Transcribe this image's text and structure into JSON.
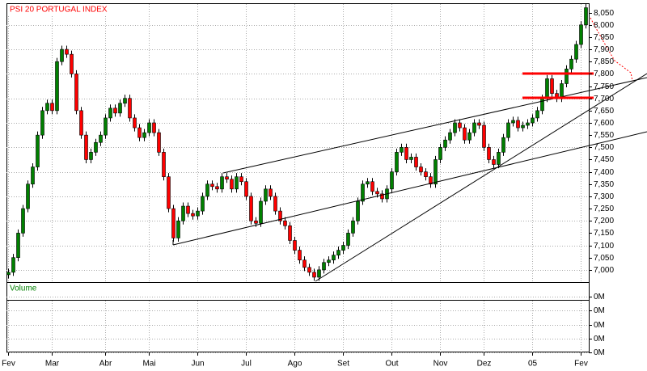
{
  "chart_data": {
    "type": "candlestick",
    "title": "PSI 20 PORTUGAL INDEX",
    "up_color": "#008000",
    "down_color": "#ff0000",
    "grid": true,
    "categories": [
      "Fev",
      null,
      null,
      null,
      null,
      null,
      null,
      null,
      null,
      "Mar",
      null,
      null,
      null,
      null,
      null,
      null,
      null,
      null,
      null,
      null,
      "Abr",
      null,
      null,
      null,
      null,
      null,
      null,
      null,
      null,
      "Mai",
      null,
      null,
      null,
      null,
      null,
      null,
      null,
      null,
      null,
      "Jun",
      null,
      null,
      null,
      null,
      null,
      null,
      null,
      null,
      null,
      "Jul",
      null,
      null,
      null,
      null,
      null,
      null,
      null,
      null,
      null,
      "Ago",
      null,
      null,
      null,
      null,
      null,
      null,
      null,
      null,
      null,
      "Set",
      null,
      null,
      null,
      null,
      null,
      null,
      null,
      null,
      null,
      "Out",
      null,
      null,
      null,
      null,
      null,
      null,
      null,
      null,
      null,
      "Nov",
      null,
      null,
      null,
      null,
      null,
      null,
      null,
      null,
      "Dez",
      null,
      null,
      null,
      null,
      null,
      null,
      null,
      null,
      null,
      "05",
      null,
      null,
      null,
      null,
      null,
      null,
      null,
      null,
      null,
      "Fev",
      null
    ],
    "open": [
      6980,
      6990,
      7050,
      7150,
      7250,
      7350,
      7420,
      7550,
      7650,
      7680,
      7650,
      7850,
      7900,
      7880,
      7800,
      7650,
      7550,
      7450,
      7480,
      7520,
      7550,
      7620,
      7660,
      7640,
      7680,
      7700,
      7620,
      7580,
      7540,
      7560,
      7600,
      7560,
      7480,
      7380,
      7250,
      7130,
      7200,
      7260,
      7230,
      7220,
      7240,
      7300,
      7350,
      7340,
      7330,
      7380,
      7370,
      7330,
      7380,
      7360,
      7300,
      7200,
      7190,
      7280,
      7330,
      7300,
      7240,
      7200,
      7180,
      7120,
      7080,
      7040,
      7010,
      6990,
      6970,
      7000,
      7030,
      7040,
      7060,
      7080,
      7100,
      7150,
      7200,
      7280,
      7350,
      7360,
      7320,
      7310,
      7290,
      7330,
      7400,
      7480,
      7500,
      7450,
      7460,
      7420,
      7400,
      7380,
      7350,
      7450,
      7500,
      7530,
      7560,
      7600,
      7580,
      7530,
      7560,
      7600,
      7590,
      7500,
      7450,
      7430,
      7480,
      7540,
      7600,
      7610,
      7580,
      7590,
      7600,
      7620,
      7650,
      7700,
      7780,
      7720,
      7700,
      7760,
      7820,
      7860,
      7920,
      8000
    ],
    "high": [
      7005,
      7065,
      7165,
      7265,
      7365,
      7435,
      7565,
      7665,
      7695,
      7695,
      7865,
      7915,
      7915,
      7895,
      7815,
      7665,
      7565,
      7495,
      7535,
      7565,
      7635,
      7675,
      7675,
      7695,
      7715,
      7715,
      7635,
      7595,
      7575,
      7615,
      7615,
      7575,
      7495,
      7395,
      7265,
      7215,
      7275,
      7275,
      7245,
      7255,
      7315,
      7365,
      7365,
      7355,
      7395,
      7395,
      7385,
      7395,
      7395,
      7375,
      7315,
      7215,
      7295,
      7345,
      7345,
      7315,
      7255,
      7215,
      7195,
      7135,
      7095,
      7055,
      7025,
      7005,
      7015,
      7045,
      7055,
      7075,
      7095,
      7115,
      7165,
      7215,
      7295,
      7365,
      7375,
      7375,
      7335,
      7325,
      7345,
      7415,
      7495,
      7515,
      7515,
      7475,
      7475,
      7435,
      7415,
      7395,
      7465,
      7515,
      7545,
      7575,
      7615,
      7615,
      7595,
      7575,
      7615,
      7615,
      7605,
      7515,
      7465,
      7495,
      7555,
      7615,
      7625,
      7625,
      7605,
      7615,
      7635,
      7665,
      7715,
      7795,
      7795,
      7735,
      7775,
      7835,
      7875,
      7935,
      8015,
      8085
    ],
    "low": [
      6965,
      6975,
      7035,
      7135,
      7235,
      7335,
      7405,
      7535,
      7635,
      7635,
      7635,
      7835,
      7865,
      7785,
      7635,
      7535,
      7435,
      7435,
      7465,
      7505,
      7535,
      7605,
      7625,
      7625,
      7665,
      7605,
      7565,
      7525,
      7525,
      7545,
      7545,
      7465,
      7365,
      7235,
      7115,
      7115,
      7185,
      7215,
      7205,
      7205,
      7225,
      7285,
      7325,
      7315,
      7315,
      7355,
      7315,
      7315,
      7345,
      7285,
      7185,
      7175,
      7175,
      7265,
      7285,
      7225,
      7185,
      7165,
      7105,
      7065,
      7025,
      6995,
      6975,
      6955,
      6955,
      6985,
      7015,
      7025,
      7045,
      7065,
      7085,
      7135,
      7185,
      7265,
      7335,
      7305,
      7295,
      7275,
      7275,
      7315,
      7385,
      7465,
      7435,
      7435,
      7405,
      7385,
      7365,
      7335,
      7335,
      7435,
      7485,
      7515,
      7545,
      7565,
      7515,
      7515,
      7545,
      7575,
      7485,
      7435,
      7415,
      7415,
      7465,
      7525,
      7585,
      7565,
      7565,
      7575,
      7585,
      7605,
      7635,
      7685,
      7705,
      7685,
      7685,
      7745,
      7805,
      7845,
      7905,
      7985
    ],
    "close": [
      6990,
      7050,
      7150,
      7250,
      7350,
      7420,
      7550,
      7650,
      7680,
      7650,
      7850,
      7900,
      7880,
      7800,
      7650,
      7550,
      7450,
      7480,
      7520,
      7550,
      7620,
      7660,
      7640,
      7680,
      7700,
      7620,
      7580,
      7540,
      7560,
      7600,
      7560,
      7480,
      7380,
      7250,
      7130,
      7200,
      7260,
      7230,
      7220,
      7240,
      7300,
      7350,
      7340,
      7330,
      7380,
      7370,
      7330,
      7380,
      7360,
      7300,
      7200,
      7190,
      7280,
      7330,
      7300,
      7240,
      7200,
      7180,
      7120,
      7080,
      7040,
      7010,
      6990,
      6970,
      7000,
      7030,
      7040,
      7060,
      7080,
      7100,
      7150,
      7200,
      7280,
      7350,
      7360,
      7320,
      7310,
      7290,
      7330,
      7400,
      7480,
      7500,
      7450,
      7460,
      7420,
      7400,
      7380,
      7350,
      7450,
      7500,
      7530,
      7560,
      7600,
      7580,
      7530,
      7560,
      7600,
      7590,
      7500,
      7450,
      7430,
      7480,
      7540,
      7600,
      7610,
      7580,
      7590,
      7600,
      7620,
      7650,
      7700,
      7780,
      7720,
      7700,
      7760,
      7820,
      7860,
      7920,
      8000,
      8070
    ],
    "ylim": [
      6950,
      8085
    ],
    "yticks": [
      {
        "value": 7000,
        "label": "7,000"
      },
      {
        "value": 7050,
        "label": "7,050"
      },
      {
        "value": 7100,
        "label": "7,100"
      },
      {
        "value": 7150,
        "label": "7,150"
      },
      {
        "value": 7200,
        "label": "7,200"
      },
      {
        "value": 7250,
        "label": "7,250"
      },
      {
        "value": 7300,
        "label": "7,300"
      },
      {
        "value": 7350,
        "label": "7,350"
      },
      {
        "value": 7400,
        "label": "7,400"
      },
      {
        "value": 7450,
        "label": "7,450"
      },
      {
        "value": 7500,
        "label": "7,500"
      },
      {
        "value": 7550,
        "label": "7,550"
      },
      {
        "value": 7600,
        "label": "7,600"
      },
      {
        "value": 7650,
        "label": "7,650"
      },
      {
        "value": 7700,
        "label": "7,700"
      },
      {
        "value": 7750,
        "label": "7,750"
      },
      {
        "value": 7800,
        "label": "7,800"
      },
      {
        "value": 7850,
        "label": "7,850"
      },
      {
        "value": 7900,
        "label": "7,900"
      },
      {
        "value": 7950,
        "label": "7,950"
      },
      {
        "value": 8000,
        "label": "8,000"
      },
      {
        "value": 8050,
        "label": "8,050"
      }
    ],
    "volume": {
      "label": "Volume",
      "ylim": [
        0,
        0.5
      ],
      "yticks": [
        {
          "value": 0,
          "label": "0M"
        },
        {
          "value": 0.1,
          "label": "0M"
        },
        {
          "value": 0.2,
          "label": "0M"
        },
        {
          "value": 0.3,
          "label": "0M"
        },
        {
          "value": 0.4,
          "label": "0M"
        }
      ]
    }
  }
}
